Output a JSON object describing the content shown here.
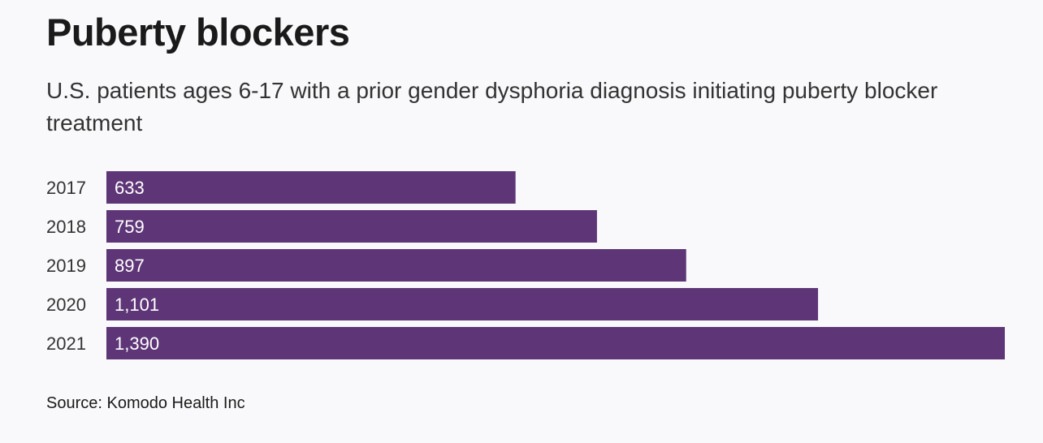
{
  "title": "Puberty blockers",
  "subtitle": "U.S. patients ages 6-17 with a prior gender dysphoria diagnosis initiating puberty blocker treatment",
  "source": "Source: Komodo Health Inc",
  "colors": {
    "bar": "#5e3677",
    "background": "#f9f9fb"
  },
  "chart_data": {
    "type": "bar",
    "orientation": "horizontal",
    "categories": [
      "2017",
      "2018",
      "2019",
      "2020",
      "2021"
    ],
    "values": [
      633,
      759,
      897,
      1101,
      1390
    ],
    "value_labels": [
      "633",
      "759",
      "897",
      "1,101",
      "1,390"
    ],
    "title": "Puberty blockers",
    "subtitle": "U.S. patients ages 6-17 with a prior gender dysphoria diagnosis initiating puberty blocker treatment",
    "xlim": [
      0,
      1390
    ],
    "grid": false,
    "legend": "none"
  }
}
